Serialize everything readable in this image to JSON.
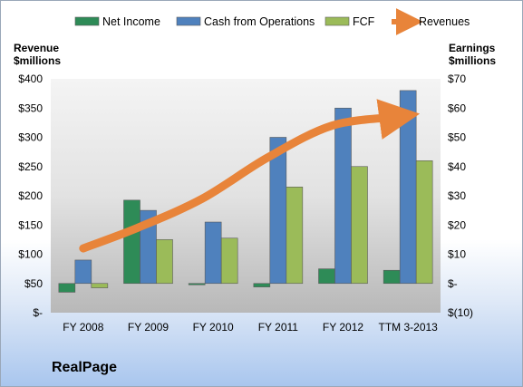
{
  "chart_data": {
    "type": "bar",
    "company": "RealPage",
    "categories": [
      "FY 2008",
      "FY 2009",
      "FY 2010",
      "FY 2011",
      "FY 2012",
      "TTM 3-2013"
    ],
    "left_axis": {
      "title_line1": "Revenue",
      "title_line2": "$millions",
      "range": [
        0,
        400
      ],
      "ticks": [
        0,
        50,
        100,
        150,
        200,
        250,
        300,
        350,
        400
      ],
      "tick_labels": [
        "$-",
        "$50",
        "$100",
        "$150",
        "$200",
        "$250",
        "$300",
        "$350",
        "$400"
      ]
    },
    "right_axis": {
      "title_line1": "Earnings",
      "title_line2": "$millions",
      "range": [
        -10,
        70
      ],
      "ticks": [
        -10,
        0,
        10,
        20,
        30,
        40,
        50,
        60,
        70
      ],
      "tick_labels": [
        "$(10)",
        "$-",
        "$10",
        "$20",
        "$30",
        "$40",
        "$50",
        "$60",
        "$70"
      ]
    },
    "series": [
      {
        "name": "Net Income",
        "axis": "right",
        "kind": "bar",
        "color": "#2e8b57",
        "values": [
          -3,
          28.5,
          -0.2,
          -1.2,
          5,
          4.5
        ]
      },
      {
        "name": "Cash from Operations",
        "axis": "right",
        "kind": "bar",
        "color": "#4f81bd",
        "values": [
          8,
          25,
          21,
          50,
          60,
          66
        ]
      },
      {
        "name": "FCF",
        "axis": "right",
        "kind": "bar",
        "color": "#9bbb59",
        "values": [
          -1.5,
          15,
          15.5,
          33,
          40,
          42
        ]
      },
      {
        "name": "Revenues",
        "axis": "left",
        "kind": "line",
        "color": "#e8843a",
        "values": [
          110,
          145,
          195,
          265,
          320,
          335
        ]
      }
    ],
    "legend_position": "top",
    "grid": false
  }
}
